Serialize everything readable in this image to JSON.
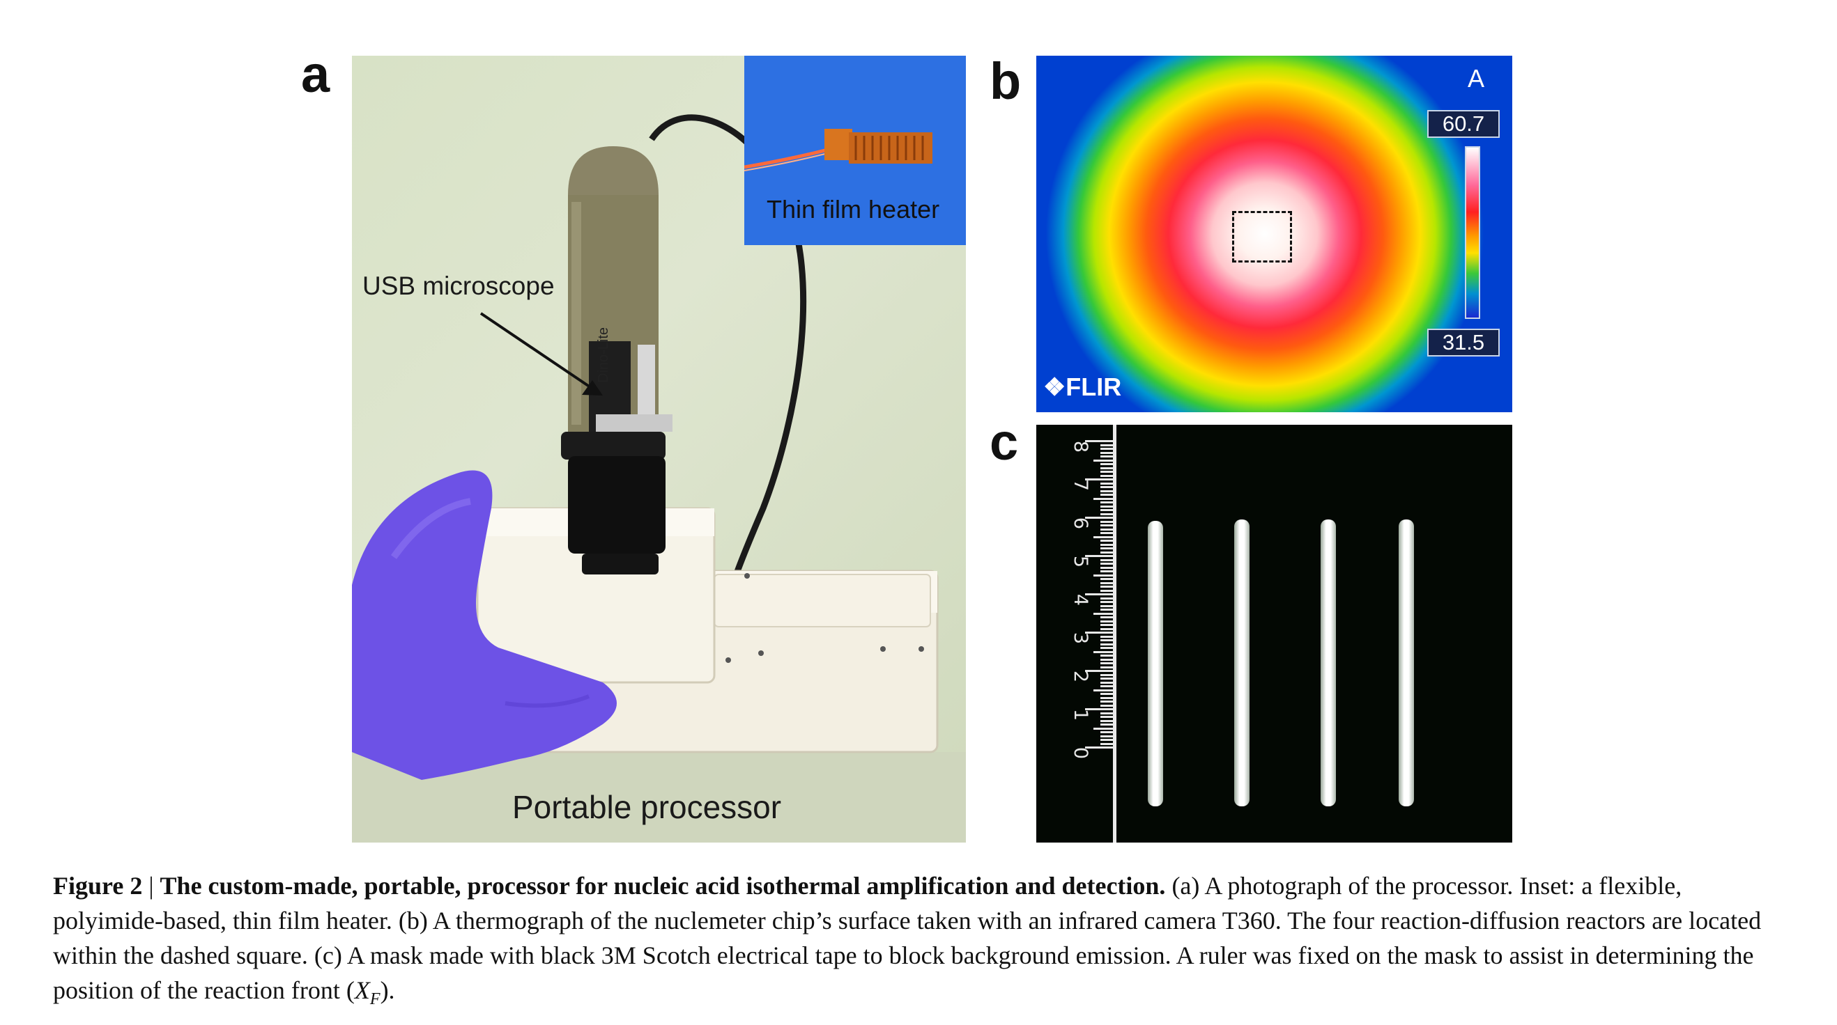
{
  "panels": {
    "a": {
      "letter": "a",
      "inset_label": "Thin film heater",
      "microscope_label": "USB microscope",
      "brand_text": "Dino-Lite",
      "processor_label": "Portable processor"
    },
    "b": {
      "letter": "b",
      "mode_label": "A",
      "temp_max": "60.7",
      "temp_min": "31.5",
      "logo_text": "FLIR"
    },
    "c": {
      "letter": "c",
      "ruler_numbers": [
        "8",
        "7",
        "6",
        "5",
        "4",
        "3",
        "2",
        "1",
        "0"
      ]
    }
  },
  "caption": {
    "figure_label": "Figure 2",
    "separator": " | ",
    "title": "The custom-made, portable, processor for nucleic acid isothermal amplification and detection.",
    "text": " (a) A photograph of the processor. Inset: a flexible, polyimide-based, thin film heater. (b) A thermograph of the nuclemeter chip’s surface taken with an infrared camera T360. The four reaction-diffusion reactors are located within the dashed square. (c) A mask made with black 3M Scotch electrical tape to block background emission. A ruler was fixed on the mask to assist in determining the position of the reaction front (",
    "xf_symbol": "X",
    "xf_subscript": "F",
    "end": ")."
  },
  "colors": {
    "glove": "#6d52e6",
    "inset_background": "#2b6fe0",
    "thermo_hot": "#ffffff",
    "thermo_cold": "#0040d0"
  }
}
